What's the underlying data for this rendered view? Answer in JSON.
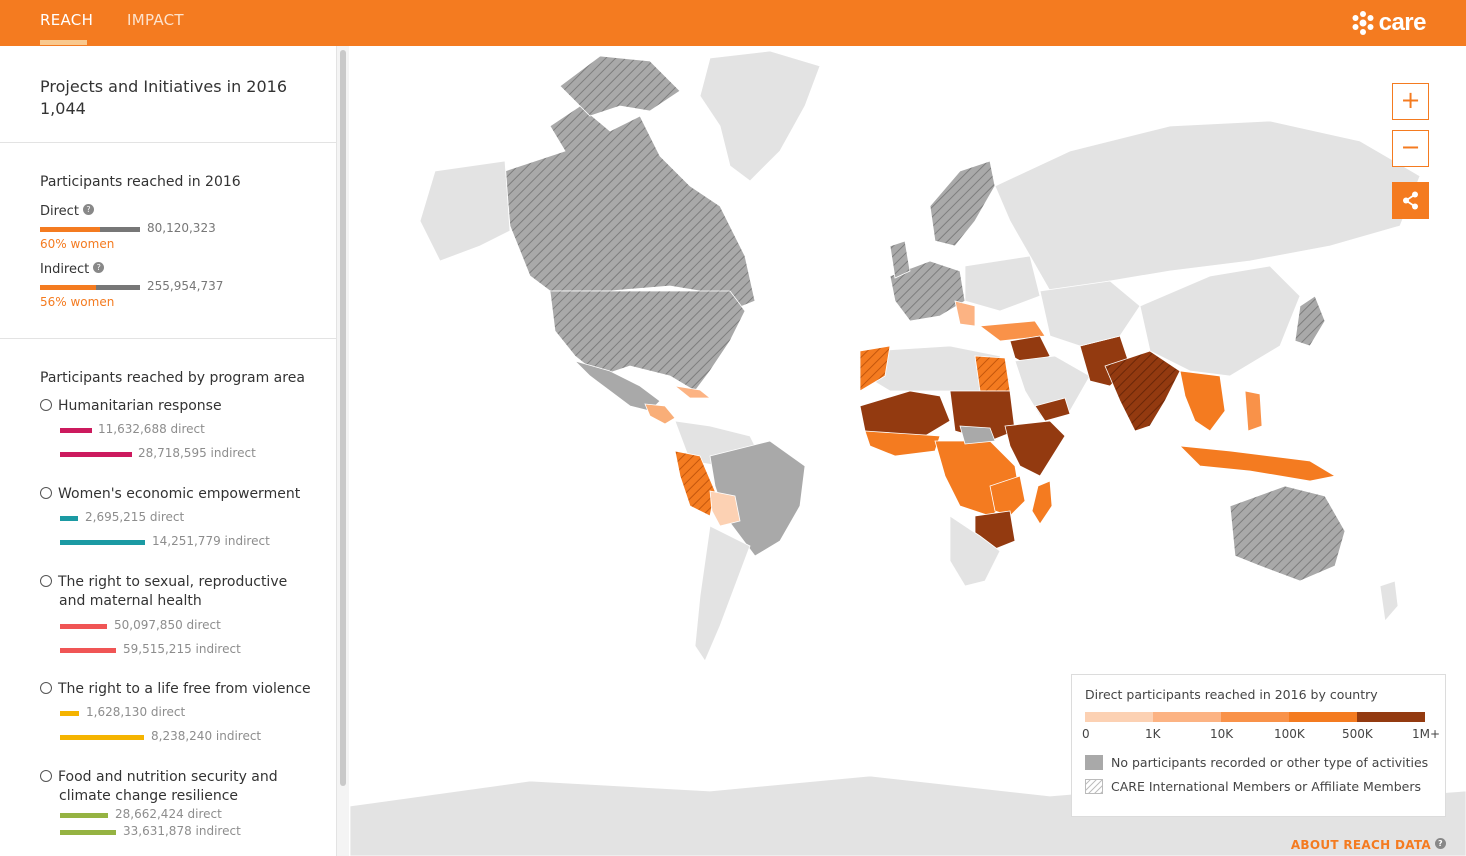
{
  "header": {
    "tabs": [
      {
        "label": "REACH"
      },
      {
        "label": "IMPACT"
      }
    ],
    "logo": "care",
    "accent": "#f47b20"
  },
  "summary": {
    "projects_title": "Projects and Initiatives in 2016",
    "projects_count": "1,044",
    "participants_title": "Participants reached in 2016",
    "direct_label": "Direct",
    "direct_value": "80,120,323",
    "direct_women": "60% women",
    "direct_women_fraction": 0.6,
    "indirect_label": "Indirect",
    "indirect_value": "255,954,737",
    "indirect_women": "56% women",
    "indirect_women_fraction": 0.56
  },
  "program": {
    "title": "Participants reached by program area",
    "items": [
      {
        "label_lines": [
          "Humanitarian response"
        ],
        "direct": "11,632,688 direct",
        "indirect": "28,718,595 indirect",
        "color": "#cc1a5e",
        "direct_n": 11632688,
        "indirect_n": 28718595
      },
      {
        "label_lines": [
          "Women's economic empowerment"
        ],
        "direct": "2,695,215 direct",
        "indirect": "14,251,779 indirect",
        "color": "#1b9aa3",
        "direct_n": 2695215,
        "indirect_n": 14251779
      },
      {
        "label_lines": [
          "The right to sexual, reproductive",
          "and maternal health"
        ],
        "direct": "50,097,850 direct",
        "indirect": "59,515,215 indirect",
        "color": "#f05555",
        "direct_n": 50097850,
        "indirect_n": 59515215
      },
      {
        "label_lines": [
          "The right to a life free from violence"
        ],
        "direct": "1,628,130 direct",
        "indirect": "8,238,240 indirect",
        "color": "#f5b400",
        "direct_n": 1628130,
        "indirect_n": 8238240
      },
      {
        "label_lines": [
          "Food and nutrition security and",
          "climate change resilience"
        ],
        "direct": "28,662,424 direct",
        "indirect": "33,631,878 indirect",
        "color": "#95b342",
        "direct_n": 28662424,
        "indirect_n": 33631878
      }
    ]
  },
  "map": {
    "zoom_in": "+",
    "zoom_out": "−",
    "share_icon": "share-icon"
  },
  "legend": {
    "title": "Direct participants reached in 2016 by country",
    "scale_labels": [
      "0",
      "1K",
      "10K",
      "100K",
      "500K",
      "1M+"
    ],
    "scale_colors": [
      "#fcd1b3",
      "#fcb383",
      "#f99249",
      "#f47b20",
      "#933a10"
    ],
    "no_participants": "No participants recorded or other type of activities",
    "care_members": "CARE International Members or Affiliate Members",
    "no_participants_color": "#a9a9a9"
  },
  "footer": {
    "about": "ABOUT REACH DATA"
  }
}
